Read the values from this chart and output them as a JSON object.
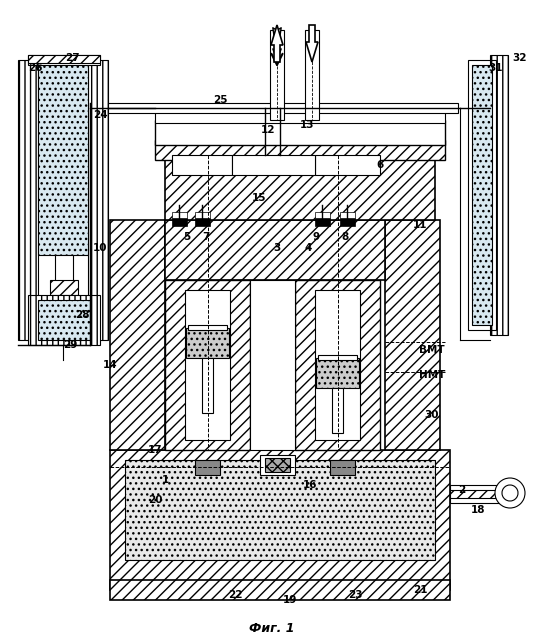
{
  "title": "Фиг. 1",
  "bg_color": "#ffffff",
  "line_color": "#000000",
  "hatch_color": "#000000",
  "fig_width": 5.45,
  "fig_height": 6.4,
  "dpi": 100
}
